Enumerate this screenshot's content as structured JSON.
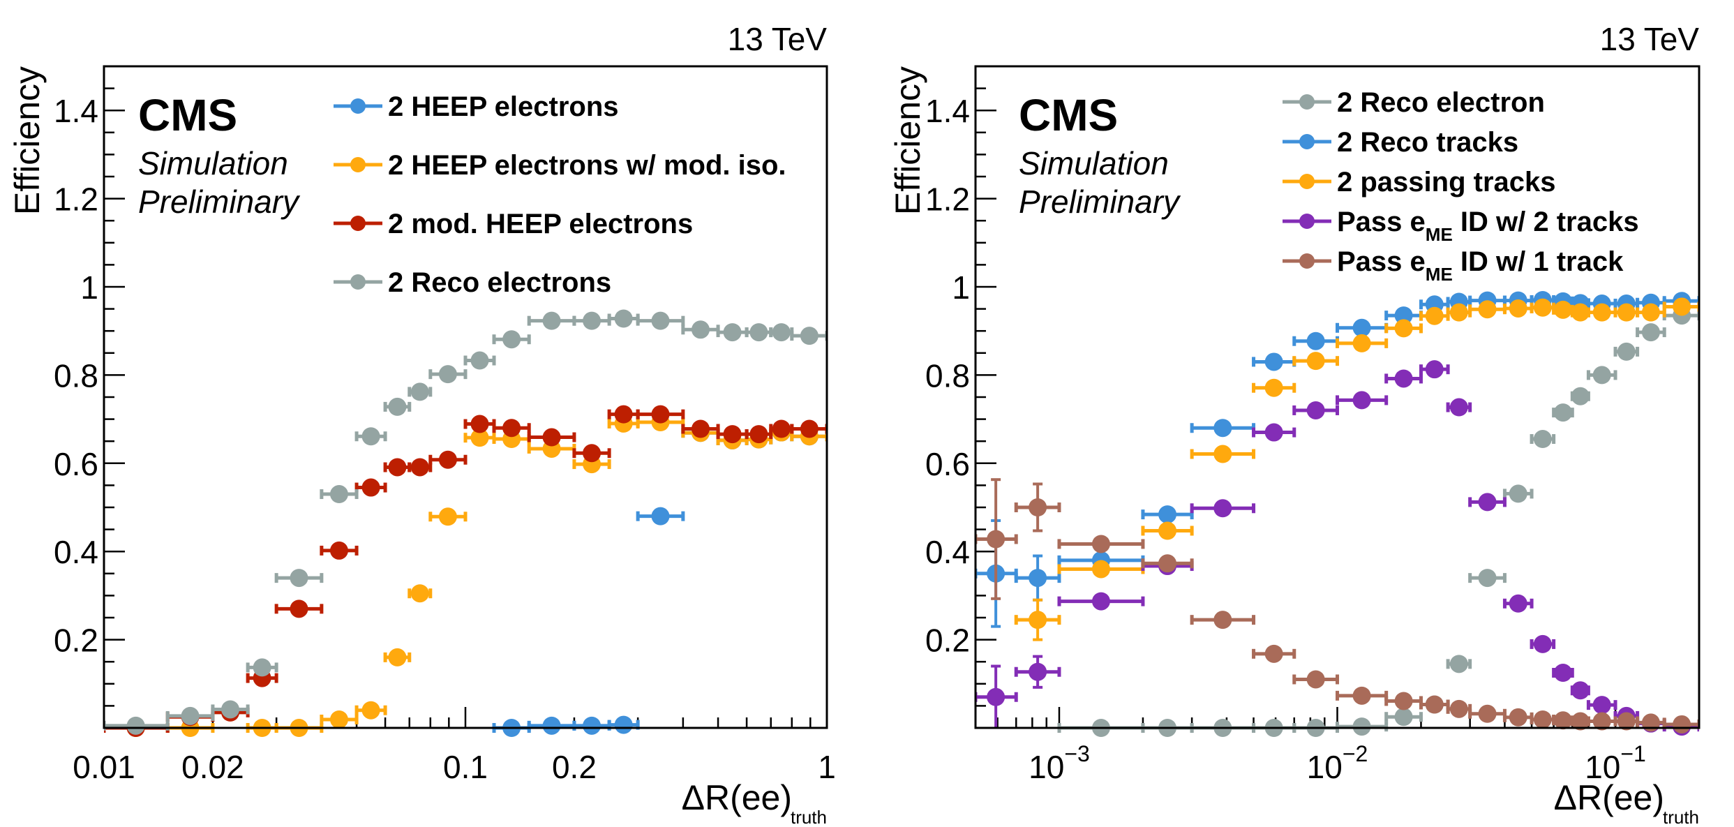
{
  "chart_data": [
    {
      "type": "scatter",
      "title": "",
      "energy_label": "13 TeV",
      "experiment_label": "CMS",
      "extra_label_lines": [
        "Simulation",
        "Preliminary"
      ],
      "xlabel": "ΔR(ee)",
      "xlabel_sub": "truth",
      "ylabel": "Efficiency",
      "xscale": "log",
      "xlim": [
        0.01,
        1.0
      ],
      "ylim": [
        0,
        1.5
      ],
      "x_tick_labels": [
        {
          "value": 0.01,
          "label": "0.01"
        },
        {
          "value": 0.02,
          "label": "0.02"
        },
        {
          "value": 0.1,
          "label": "0.1"
        },
        {
          "value": 0.2,
          "label": "0.2"
        },
        {
          "value": 1,
          "label": "1"
        }
      ],
      "y_tick_labels": [
        {
          "value": 0.2,
          "label": "0.2"
        },
        {
          "value": 0.4,
          "label": "0.4"
        },
        {
          "value": 0.6,
          "label": "0.6"
        },
        {
          "value": 0.8,
          "label": "0.8"
        },
        {
          "value": 1.0,
          "label": "1"
        },
        {
          "value": 1.2,
          "label": "1.2"
        },
        {
          "value": 1.4,
          "label": "1.4"
        }
      ],
      "legend_position": "top-right",
      "bin_edges": [
        0.01,
        0.015,
        0.02,
        0.025,
        0.03,
        0.04,
        0.05,
        0.06,
        0.07,
        0.08,
        0.1,
        0.12,
        0.15,
        0.2,
        0.25,
        0.3,
        0.4,
        0.5,
        0.6,
        0.7,
        0.8,
        1.0
      ],
      "series": [
        {
          "name": "2 HEEP electrons",
          "color": "#3f90da",
          "values": [
            null,
            null,
            null,
            null,
            null,
            null,
            null,
            null,
            null,
            null,
            null,
            0.0,
            0.005,
            0.005,
            0.007,
            0.48,
            0.669,
            0.652,
            0.654,
            0.67,
            0.661
          ]
        },
        {
          "name": "2 HEEP electrons w/ mod. iso.",
          "color": "#ffa90e",
          "values": [
            0.0,
            0.0,
            null,
            0.0,
            0.0,
            0.019,
            0.04,
            0.16,
            0.305,
            0.479,
            0.658,
            0.655,
            0.633,
            0.598,
            0.69,
            0.693,
            0.669,
            0.652,
            0.654,
            0.67,
            0.661
          ]
        },
        {
          "name": "2 mod. HEEP electrons",
          "color": "#bd1f01",
          "values": [
            0.0,
            0.025,
            0.035,
            0.113,
            0.27,
            0.402,
            0.545,
            0.591,
            0.591,
            0.608,
            0.689,
            0.68,
            0.659,
            0.623,
            0.711,
            0.711,
            0.678,
            0.666,
            0.666,
            0.678,
            0.678
          ]
        },
        {
          "name": "2 Reco electrons",
          "color": "#94a4a2",
          "values": [
            0.005,
            0.027,
            0.042,
            0.137,
            0.34,
            0.53,
            0.661,
            0.728,
            0.762,
            0.802,
            0.833,
            0.881,
            0.923,
            0.923,
            0.928,
            0.923,
            0.903,
            0.897,
            0.897,
            0.897,
            0.889
          ]
        }
      ]
    },
    {
      "type": "scatter",
      "title": "",
      "energy_label": "13 TeV",
      "experiment_label": "CMS",
      "extra_label_lines": [
        "Simulation",
        "Preliminary"
      ],
      "xlabel": "ΔR(ee)",
      "xlabel_sub": "truth",
      "ylabel": "Efficiency",
      "xscale": "log",
      "xlim": [
        0.0005,
        0.2
      ],
      "ylim": [
        0,
        1.5
      ],
      "x_tick_labels": [
        {
          "value": 0.001,
          "base": "10",
          "exp": "−3"
        },
        {
          "value": 0.01,
          "base": "10",
          "exp": "−2"
        },
        {
          "value": 0.1,
          "base": "10",
          "exp": "−1"
        }
      ],
      "y_tick_labels": [
        {
          "value": 0.2,
          "label": "0.2"
        },
        {
          "value": 0.4,
          "label": "0.4"
        },
        {
          "value": 0.6,
          "label": "0.6"
        },
        {
          "value": 0.8,
          "label": "0.8"
        },
        {
          "value": 1.0,
          "label": "1"
        },
        {
          "value": 1.2,
          "label": "1.2"
        },
        {
          "value": 1.4,
          "label": "1.4"
        }
      ],
      "legend_position": "top-right",
      "bin_edges": [
        0.0005,
        0.0007,
        0.001,
        0.002,
        0.003,
        0.005,
        0.007,
        0.01,
        0.015,
        0.02,
        0.025,
        0.03,
        0.04,
        0.05,
        0.06,
        0.07,
        0.08,
        0.1,
        0.12,
        0.15,
        0.2
      ],
      "series": [
        {
          "name": "2 Reco electron",
          "name_parts": [
            "2 Reco electron"
          ],
          "color": "#94a4a2",
          "values": [
            null,
            null,
            0.0,
            0.0,
            0.0,
            0.0,
            0.0,
            0.003,
            0.025,
            0.053,
            0.145,
            0.34,
            0.531,
            0.655,
            0.715,
            0.752,
            0.8,
            0.853,
            0.897,
            0.935
          ]
        },
        {
          "name": "2 Reco tracks",
          "name_parts": [
            "2 Reco tracks"
          ],
          "color": "#3f90da",
          "values": [
            0.35,
            0.34,
            0.38,
            0.484,
            0.68,
            0.83,
            0.877,
            0.907,
            0.935,
            0.96,
            0.966,
            0.969,
            0.969,
            0.97,
            0.967,
            0.963,
            0.962,
            0.962,
            0.964,
            0.968
          ],
          "yerr": [
            0.12,
            0.05,
            null,
            null,
            null,
            null,
            null,
            null,
            null,
            null,
            null,
            null,
            null,
            null,
            null,
            null,
            null,
            null,
            null,
            null
          ]
        },
        {
          "name": "2 passing tracks",
          "name_parts": [
            "2 passing tracks"
          ],
          "color": "#ffa90e",
          "values": [
            null,
            0.245,
            0.36,
            0.447,
            0.621,
            0.771,
            0.832,
            0.872,
            0.906,
            0.934,
            0.942,
            0.949,
            0.951,
            0.953,
            0.948,
            0.942,
            0.942,
            0.942,
            0.942,
            0.955
          ],
          "yerr": [
            null,
            0.045,
            null,
            null,
            null,
            null,
            null,
            null,
            null,
            null,
            null,
            null,
            null,
            null,
            null,
            null,
            null,
            null,
            null,
            null
          ]
        },
        {
          "name": "Pass eME ID w/ 2 tracks",
          "name_parts": [
            "Pass e",
            "ME",
            " ID w/ 2 tracks"
          ],
          "color": "#832db6",
          "values": [
            0.07,
            0.127,
            0.287,
            0.367,
            0.498,
            0.67,
            0.72,
            0.743,
            0.792,
            0.813,
            0.727,
            0.512,
            0.282,
            0.19,
            0.125,
            0.085,
            0.052,
            0.027,
            0.01,
            0.003
          ],
          "yerr": [
            0.07,
            0.035,
            null,
            null,
            null,
            null,
            null,
            null,
            null,
            null,
            null,
            null,
            null,
            null,
            null,
            null,
            null,
            null,
            null,
            null
          ]
        },
        {
          "name": "Pass eME ID w/ 1 track",
          "name_parts": [
            "Pass e",
            "ME",
            " ID w/ 1 track"
          ],
          "color": "#a96b59",
          "values": [
            0.428,
            0.5,
            0.417,
            0.373,
            0.245,
            0.168,
            0.11,
            0.073,
            0.061,
            0.053,
            0.043,
            0.032,
            0.024,
            0.019,
            0.017,
            0.015,
            0.015,
            0.015,
            0.012,
            0.008
          ],
          "yerr": [
            0.135,
            0.053,
            null,
            null,
            null,
            null,
            null,
            null,
            null,
            null,
            null,
            null,
            null,
            null,
            null,
            null,
            null,
            null,
            null,
            null
          ]
        }
      ]
    }
  ]
}
